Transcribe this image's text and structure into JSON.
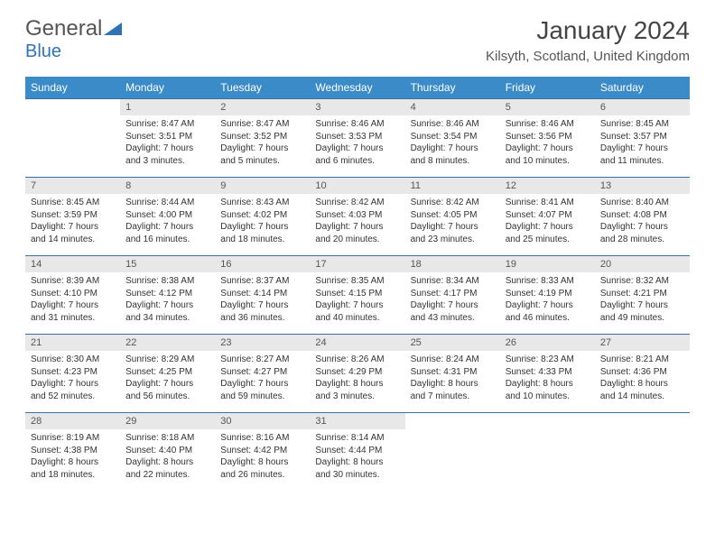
{
  "logo": {
    "text1": "General",
    "text2": "Blue",
    "color1": "#6a6a6a",
    "color2": "#2f73b5"
  },
  "title": "January 2024",
  "location": "Kilsyth, Scotland, United Kingdom",
  "header_bg": "#3b8bc9",
  "week_border": "#3b6fa0",
  "daynum_bg": "#e8e8e8",
  "weekdays": [
    "Sunday",
    "Monday",
    "Tuesday",
    "Wednesday",
    "Thursday",
    "Friday",
    "Saturday"
  ],
  "weeks": [
    [
      null,
      {
        "n": "1",
        "sr": "8:47 AM",
        "ss": "3:51 PM",
        "dl": "7 hours and 3 minutes."
      },
      {
        "n": "2",
        "sr": "8:47 AM",
        "ss": "3:52 PM",
        "dl": "7 hours and 5 minutes."
      },
      {
        "n": "3",
        "sr": "8:46 AM",
        "ss": "3:53 PM",
        "dl": "7 hours and 6 minutes."
      },
      {
        "n": "4",
        "sr": "8:46 AM",
        "ss": "3:54 PM",
        "dl": "7 hours and 8 minutes."
      },
      {
        "n": "5",
        "sr": "8:46 AM",
        "ss": "3:56 PM",
        "dl": "7 hours and 10 minutes."
      },
      {
        "n": "6",
        "sr": "8:45 AM",
        "ss": "3:57 PM",
        "dl": "7 hours and 11 minutes."
      }
    ],
    [
      {
        "n": "7",
        "sr": "8:45 AM",
        "ss": "3:59 PM",
        "dl": "7 hours and 14 minutes."
      },
      {
        "n": "8",
        "sr": "8:44 AM",
        "ss": "4:00 PM",
        "dl": "7 hours and 16 minutes."
      },
      {
        "n": "9",
        "sr": "8:43 AM",
        "ss": "4:02 PM",
        "dl": "7 hours and 18 minutes."
      },
      {
        "n": "10",
        "sr": "8:42 AM",
        "ss": "4:03 PM",
        "dl": "7 hours and 20 minutes."
      },
      {
        "n": "11",
        "sr": "8:42 AM",
        "ss": "4:05 PM",
        "dl": "7 hours and 23 minutes."
      },
      {
        "n": "12",
        "sr": "8:41 AM",
        "ss": "4:07 PM",
        "dl": "7 hours and 25 minutes."
      },
      {
        "n": "13",
        "sr": "8:40 AM",
        "ss": "4:08 PM",
        "dl": "7 hours and 28 minutes."
      }
    ],
    [
      {
        "n": "14",
        "sr": "8:39 AM",
        "ss": "4:10 PM",
        "dl": "7 hours and 31 minutes."
      },
      {
        "n": "15",
        "sr": "8:38 AM",
        "ss": "4:12 PM",
        "dl": "7 hours and 34 minutes."
      },
      {
        "n": "16",
        "sr": "8:37 AM",
        "ss": "4:14 PM",
        "dl": "7 hours and 36 minutes."
      },
      {
        "n": "17",
        "sr": "8:35 AM",
        "ss": "4:15 PM",
        "dl": "7 hours and 40 minutes."
      },
      {
        "n": "18",
        "sr": "8:34 AM",
        "ss": "4:17 PM",
        "dl": "7 hours and 43 minutes."
      },
      {
        "n": "19",
        "sr": "8:33 AM",
        "ss": "4:19 PM",
        "dl": "7 hours and 46 minutes."
      },
      {
        "n": "20",
        "sr": "8:32 AM",
        "ss": "4:21 PM",
        "dl": "7 hours and 49 minutes."
      }
    ],
    [
      {
        "n": "21",
        "sr": "8:30 AM",
        "ss": "4:23 PM",
        "dl": "7 hours and 52 minutes."
      },
      {
        "n": "22",
        "sr": "8:29 AM",
        "ss": "4:25 PM",
        "dl": "7 hours and 56 minutes."
      },
      {
        "n": "23",
        "sr": "8:27 AM",
        "ss": "4:27 PM",
        "dl": "7 hours and 59 minutes."
      },
      {
        "n": "24",
        "sr": "8:26 AM",
        "ss": "4:29 PM",
        "dl": "8 hours and 3 minutes."
      },
      {
        "n": "25",
        "sr": "8:24 AM",
        "ss": "4:31 PM",
        "dl": "8 hours and 7 minutes."
      },
      {
        "n": "26",
        "sr": "8:23 AM",
        "ss": "4:33 PM",
        "dl": "8 hours and 10 minutes."
      },
      {
        "n": "27",
        "sr": "8:21 AM",
        "ss": "4:36 PM",
        "dl": "8 hours and 14 minutes."
      }
    ],
    [
      {
        "n": "28",
        "sr": "8:19 AM",
        "ss": "4:38 PM",
        "dl": "8 hours and 18 minutes."
      },
      {
        "n": "29",
        "sr": "8:18 AM",
        "ss": "4:40 PM",
        "dl": "8 hours and 22 minutes."
      },
      {
        "n": "30",
        "sr": "8:16 AM",
        "ss": "4:42 PM",
        "dl": "8 hours and 26 minutes."
      },
      {
        "n": "31",
        "sr": "8:14 AM",
        "ss": "4:44 PM",
        "dl": "8 hours and 30 minutes."
      },
      null,
      null,
      null
    ]
  ],
  "labels": {
    "sunrise": "Sunrise:",
    "sunset": "Sunset:",
    "daylight": "Daylight:"
  }
}
